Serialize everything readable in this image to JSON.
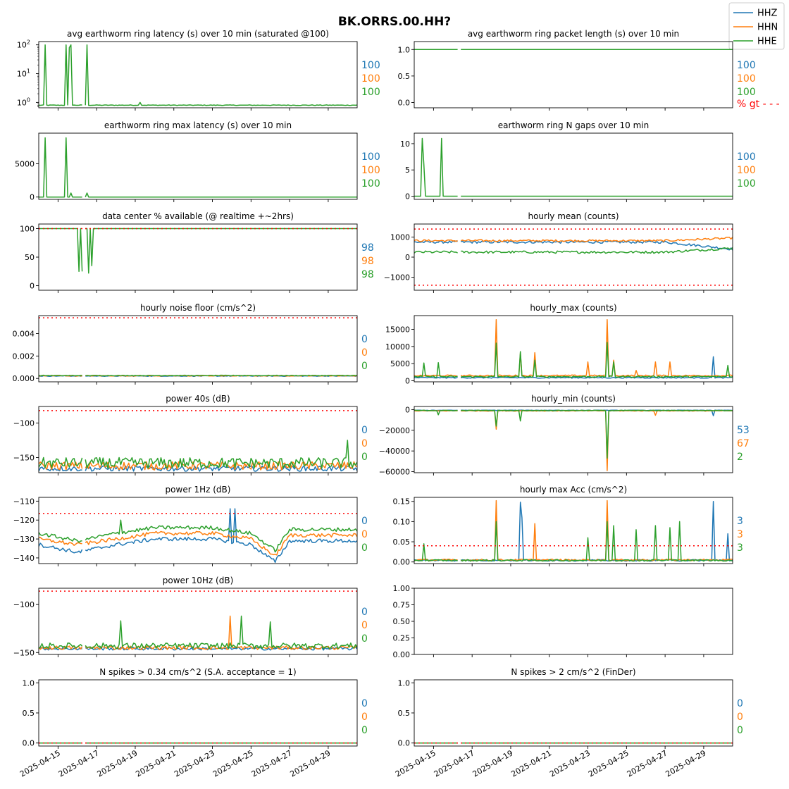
{
  "figure": {
    "title": "BK.ORRS.00.HH?",
    "colors": {
      "HHZ": "#1f77b4",
      "HHN": "#ff7f0e",
      "HHE": "#2ca02c",
      "threshold": "#ff0000"
    },
    "legend": {
      "placement": "top-right",
      "entries": [
        "HHZ",
        "HHN",
        "HHE"
      ]
    },
    "x_axis": {
      "range": [
        "2025-04-14",
        "2025-04-30T12:00"
      ],
      "tick_labels": [
        "2025-04-15",
        "2025-04-17",
        "2025-04-19",
        "2025-04-21",
        "2025-04-23",
        "2025-04-25",
        "2025-04-27",
        "2025-04-29"
      ],
      "data_gap": [
        "2025-04-16T06:00",
        "2025-04-16T10:00"
      ]
    }
  },
  "chart_data": [
    {
      "id": "p1",
      "type": "line",
      "title": "avg earthworm ring latency (s)   over 10 min (saturated @100)",
      "yscale": "log",
      "ylim": [
        0.65,
        130
      ],
      "y_tick_labels": [
        "10^0",
        "10^1",
        "10^2"
      ],
      "y_ticks": [
        1,
        10,
        100
      ],
      "threshold": null,
      "percent_labels": [
        "100",
        "100",
        "100"
      ],
      "series": [
        {
          "name": "HHE",
          "baseline": 0.8,
          "noise": 0.02,
          "spikes": [
            [
              "2025-04-14T09:00",
              100
            ],
            [
              "2025-04-15T10:00",
              100
            ],
            [
              "2025-04-15T14:00",
              80
            ],
            [
              "2025-04-15T16:00",
              100
            ],
            [
              "2025-04-16T12:00",
              100
            ],
            [
              "2025-04-19T06:00",
              1.0
            ]
          ]
        }
      ]
    },
    {
      "id": "p2",
      "type": "line",
      "title": "avg earthworm ring packet length (s)   over 10 min",
      "yscale": "linear",
      "ylim": [
        -0.1,
        1.15
      ],
      "y_ticks": [
        0,
        0.5,
        1
      ],
      "y_tick_labels": [
        "0.0",
        "0.5",
        "1.0"
      ],
      "threshold": null,
      "percent_labels": [
        "100",
        "100",
        "100"
      ],
      "note": "% gt - - -",
      "series": [
        {
          "name": "HHE",
          "baseline": 1.0,
          "noise": 0,
          "spikes": []
        }
      ]
    },
    {
      "id": "p3",
      "type": "line",
      "title": "earthworm ring max latency (s)   over 10 min",
      "yscale": "linear",
      "ylim": [
        -350,
        9600
      ],
      "y_ticks": [
        0,
        5000
      ],
      "y_tick_labels": [
        "0",
        "5000"
      ],
      "threshold": null,
      "percent_labels": [
        "100",
        "100",
        "100"
      ],
      "series": [
        {
          "name": "HHE",
          "baseline": 0,
          "noise": 0,
          "spikes": [
            [
              "2025-04-14T09:00",
              8900
            ],
            [
              "2025-04-15T10:00",
              8900
            ],
            [
              "2025-04-15T16:00",
              600
            ],
            [
              "2025-04-16T12:00",
              600
            ]
          ]
        }
      ]
    },
    {
      "id": "p4",
      "type": "line",
      "title": "earthworm ring N gaps   over 10 min",
      "yscale": "linear",
      "ylim": [
        -0.6,
        12
      ],
      "y_ticks": [
        0,
        5,
        10
      ],
      "y_tick_labels": [
        "0",
        "5",
        "10"
      ],
      "threshold": null,
      "percent_labels": [
        "100",
        "100",
        "100"
      ],
      "series": [
        {
          "name": "HHE",
          "baseline": 0,
          "noise": 0,
          "spikes": [
            [
              "2025-04-14T10:00",
              11
            ],
            [
              "2025-04-14T12:00",
              6
            ],
            [
              "2025-04-15T10:00",
              11
            ]
          ]
        }
      ]
    },
    {
      "id": "p5",
      "type": "line",
      "title": "data center % available (@ realtime +~2hrs)",
      "yscale": "linear",
      "ylim": [
        -8,
        108
      ],
      "y_ticks": [
        0,
        50,
        100
      ],
      "y_tick_labels": [
        "0",
        "50",
        "100"
      ],
      "threshold": 100,
      "percent_labels": [
        "98",
        "98",
        "98"
      ],
      "series": [
        {
          "name": "HHE",
          "baseline": 100,
          "noise": 0,
          "spikes": [
            [
              "2025-04-16T03:00",
              25
            ],
            [
              "2025-04-16T06:00",
              25
            ],
            [
              "2025-04-16T14:00",
              22
            ],
            [
              "2025-04-16T18:00",
              35
            ]
          ]
        }
      ]
    },
    {
      "id": "p6",
      "type": "line",
      "title": "hourly mean (counts)",
      "yscale": "linear",
      "ylim": [
        -1650,
        1650
      ],
      "y_ticks": [
        -1000,
        0,
        1000
      ],
      "y_tick_labels": [
        "−1000",
        "0",
        "1000"
      ],
      "threshold": [
        1400,
        -1400
      ],
      "percent_labels": [],
      "series": [
        {
          "name": "HHZ",
          "baseline": 750,
          "noise": 60,
          "end_value": 400,
          "spikes": []
        },
        {
          "name": "HHN",
          "baseline": 820,
          "noise": 50,
          "end_value": 950,
          "spikes": []
        },
        {
          "name": "HHE",
          "baseline": 250,
          "noise": 60,
          "end_value": 450,
          "spikes": []
        }
      ]
    },
    {
      "id": "p7",
      "type": "line",
      "title": "hourly noise floor (cm/s^2)",
      "yscale": "linear",
      "ylim": [
        -0.0003,
        0.0056
      ],
      "y_ticks": [
        0,
        0.002,
        0.004
      ],
      "y_tick_labels": [
        "0.000",
        "0.002",
        "0.004"
      ],
      "threshold": 0.0054,
      "percent_labels": [
        "0",
        "0",
        "0"
      ],
      "series": [
        {
          "name": "HHZ",
          "baseline": 0.00022,
          "noise": 3e-05,
          "spikes": []
        },
        {
          "name": "HHN",
          "baseline": 0.00024,
          "noise": 3e-05,
          "spikes": []
        },
        {
          "name": "HHE",
          "baseline": 0.00026,
          "noise": 3e-05,
          "spikes": []
        }
      ]
    },
    {
      "id": "p8",
      "type": "line",
      "title": "hourly_max (counts)",
      "yscale": "linear",
      "ylim": [
        -300,
        19000
      ],
      "y_ticks": [
        0,
        5000,
        10000,
        15000
      ],
      "y_tick_labels": [
        "0",
        "5000",
        "10000",
        "15000"
      ],
      "threshold": null,
      "percent_labels": [],
      "series": [
        {
          "name": "HHZ",
          "baseline": 900,
          "noise": 150,
          "spikes": [
            [
              "2025-04-29T12:00",
              7000
            ]
          ]
        },
        {
          "name": "HHN",
          "baseline": 1500,
          "noise": 200,
          "spikes": [
            [
              "2025-04-18T07:00",
              17800
            ],
            [
              "2025-04-19T12:00",
              8000
            ],
            [
              "2025-04-20T06:00",
              8200
            ],
            [
              "2025-04-23T00:00",
              5500
            ],
            [
              "2025-04-24T00:00",
              17800
            ],
            [
              "2025-04-24T09:00",
              6000
            ],
            [
              "2025-04-25T12:00",
              3000
            ],
            [
              "2025-04-26T12:00",
              5500
            ],
            [
              "2025-04-27T06:00",
              5500
            ]
          ]
        },
        {
          "name": "HHE",
          "baseline": 1200,
          "noise": 200,
          "spikes": [
            [
              "2025-04-14T12:00",
              5200
            ],
            [
              "2025-04-15T06:00",
              5300
            ],
            [
              "2025-04-18T07:00",
              11000
            ],
            [
              "2025-04-19T12:00",
              8500
            ],
            [
              "2025-04-20T06:00",
              6000
            ],
            [
              "2025-04-24T00:00",
              11200
            ],
            [
              "2025-04-24T09:00",
              5500
            ],
            [
              "2025-04-30T06:00",
              4500
            ]
          ]
        }
      ]
    },
    {
      "id": "p9",
      "type": "line",
      "title": "power 40s (dB)",
      "yscale": "linear",
      "ylim": [
        -172,
        -76
      ],
      "y_ticks": [
        -150,
        -100
      ],
      "y_tick_labels": [
        "−150",
        "−100"
      ],
      "threshold": -82,
      "percent_labels": [
        "0",
        "0",
        "0"
      ],
      "series": [
        {
          "name": "HHZ",
          "baseline": -166,
          "noise": 4,
          "spikes": []
        },
        {
          "name": "HHN",
          "baseline": -162,
          "noise": 6,
          "spikes": []
        },
        {
          "name": "HHE",
          "baseline": -158,
          "noise": 8,
          "spikes": [
            [
              "2025-04-30T00:00",
              -125
            ]
          ]
        }
      ]
    },
    {
      "id": "p10",
      "type": "line",
      "title": "hourly_min (counts)",
      "yscale": "linear",
      "ylim": [
        -61000,
        3000
      ],
      "y_ticks": [
        -60000,
        -40000,
        -20000,
        0
      ],
      "y_tick_labels": [
        "−60000",
        "−40000",
        "−20000",
        "0"
      ],
      "threshold": null,
      "percent_labels": [
        "53",
        "67",
        "2"
      ],
      "series": [
        {
          "name": "HHZ",
          "baseline": -700,
          "noise": 200,
          "spikes": [
            [
              "2025-04-29T12:00",
              -6000
            ]
          ]
        },
        {
          "name": "HHN",
          "baseline": -1200,
          "noise": 300,
          "spikes": [
            [
              "2025-04-18T07:00",
              -19000
            ],
            [
              "2025-04-24T00:00",
              -59000
            ],
            [
              "2025-04-26T12:00",
              -5500
            ]
          ]
        },
        {
          "name": "HHE",
          "baseline": -900,
          "noise": 300,
          "spikes": [
            [
              "2025-04-18T07:00",
              -16000
            ],
            [
              "2025-04-19T12:00",
              -11000
            ],
            [
              "2025-04-24T00:00",
              -47000
            ],
            [
              "2025-04-15T06:00",
              -5000
            ]
          ]
        }
      ]
    },
    {
      "id": "p11",
      "type": "line",
      "title": "power 1Hz (dB)",
      "yscale": "linear",
      "ylim": [
        -143,
        -108
      ],
      "y_ticks": [
        -140,
        -130,
        -120,
        -110
      ],
      "y_tick_labels": [
        "−140",
        "−130",
        "−120",
        "−110"
      ],
      "threshold": -116.5,
      "percent_labels": [
        "0",
        "0",
        "0"
      ],
      "series": [
        {
          "name": "HHZ",
          "baseline": -131,
          "noise": 1,
          "spikes": [
            [
              "2025-04-23T22:00",
              -114
            ],
            [
              "2025-04-24T04:00",
              -114
            ]
          ],
          "profile": [
            [
              "2025-04-14",
              -133
            ],
            [
              "2025-04-16",
              -137
            ],
            [
              "2025-04-18",
              -133
            ],
            [
              "2025-04-20",
              -130
            ],
            [
              "2025-04-23",
              -130
            ],
            [
              "2025-04-25",
              -133
            ],
            [
              "2025-04-26T06:00",
              -142
            ],
            [
              "2025-04-27",
              -131
            ],
            [
              "2025-04-30T12:00",
              -131
            ]
          ]
        },
        {
          "name": "HHN",
          "baseline": -128,
          "noise": 1,
          "spikes": [],
          "profile": [
            [
              "2025-04-14",
              -130
            ],
            [
              "2025-04-16",
              -133
            ],
            [
              "2025-04-18",
              -130
            ],
            [
              "2025-04-20",
              -127
            ],
            [
              "2025-04-23",
              -127
            ],
            [
              "2025-04-25",
              -130
            ],
            [
              "2025-04-26T06:00",
              -139
            ],
            [
              "2025-04-27",
              -128
            ],
            [
              "2025-04-30T12:00",
              -128
            ]
          ]
        },
        {
          "name": "HHE",
          "baseline": -125,
          "noise": 1,
          "spikes": [
            [
              "2025-04-18T07:00",
              -120
            ]
          ],
          "profile": [
            [
              "2025-04-14",
              -127
            ],
            [
              "2025-04-16",
              -131
            ],
            [
              "2025-04-18",
              -127
            ],
            [
              "2025-04-20",
              -124
            ],
            [
              "2025-04-23",
              -124
            ],
            [
              "2025-04-25",
              -127
            ],
            [
              "2025-04-26T06:00",
              -136
            ],
            [
              "2025-04-27",
              -125
            ],
            [
              "2025-04-30T12:00",
              -125
            ]
          ]
        }
      ]
    },
    {
      "id": "p12",
      "type": "line",
      "title": "hourly max Acc (cm/s^2)",
      "yscale": "linear",
      "ylim": [
        -0.004,
        0.16
      ],
      "y_ticks": [
        0,
        0.05,
        0.1,
        0.15
      ],
      "y_tick_labels": [
        "0.00",
        "0.05",
        "0.10",
        "0.15"
      ],
      "threshold": 0.04,
      "percent_labels": [
        "3",
        "3",
        "3"
      ],
      "series": [
        {
          "name": "HHZ",
          "baseline": 0.004,
          "noise": 0.002,
          "spikes": [
            [
              "2025-04-19T12:00",
              0.148
            ],
            [
              "2025-04-19T15:00",
              0.11
            ],
            [
              "2025-04-29T12:00",
              0.15
            ],
            [
              "2025-04-30T06:00",
              0.07
            ]
          ]
        },
        {
          "name": "HHN",
          "baseline": 0.005,
          "noise": 0.002,
          "spikes": [
            [
              "2025-04-18T07:00",
              0.152
            ],
            [
              "2025-04-24T00:00",
              0.152
            ],
            [
              "2025-04-20T06:00",
              0.095
            ]
          ]
        },
        {
          "name": "HHE",
          "baseline": 0.004,
          "noise": 0.002,
          "spikes": [
            [
              "2025-04-14T12:00",
              0.045
            ],
            [
              "2025-04-18T07:00",
              0.1
            ],
            [
              "2025-04-23T00:00",
              0.06
            ],
            [
              "2025-04-24T00:00",
              0.1
            ],
            [
              "2025-04-24T09:00",
              0.09
            ],
            [
              "2025-04-25T12:00",
              0.08
            ],
            [
              "2025-04-26T12:00",
              0.09
            ],
            [
              "2025-04-27T06:00",
              0.085
            ],
            [
              "2025-04-27T18:00",
              0.1
            ]
          ]
        }
      ]
    },
    {
      "id": "p13",
      "type": "line",
      "title": "power 10Hz (dB)",
      "yscale": "linear",
      "ylim": [
        -152,
        -83
      ],
      "y_ticks": [
        -150,
        -100
      ],
      "y_tick_labels": [
        "−150",
        "−100"
      ],
      "threshold": -86,
      "percent_labels": [
        "0",
        "0",
        "0"
      ],
      "series": [
        {
          "name": "HHZ",
          "baseline": -146,
          "noise": 1.5,
          "spikes": []
        },
        {
          "name": "HHN",
          "baseline": -145,
          "noise": 2,
          "spikes": [
            [
              "2025-04-23T22:00",
              -112
            ]
          ]
        },
        {
          "name": "HHE",
          "baseline": -143,
          "noise": 3,
          "spikes": [
            [
              "2025-04-18T06:00",
              -117
            ],
            [
              "2025-04-24T12:00",
              -112
            ],
            [
              "2025-04-26T00:00",
              -118
            ]
          ]
        }
      ]
    },
    {
      "id": "p14",
      "type": "empty",
      "title": "",
      "yscale": "linear",
      "ylim": [
        0,
        1
      ],
      "y_ticks": [
        0,
        0.25,
        0.5,
        0.75,
        1
      ],
      "y_tick_labels": [
        "0.00",
        "0.25",
        "0.50",
        "0.75",
        "1.00"
      ],
      "threshold": null,
      "percent_labels": [],
      "series": []
    },
    {
      "id": "p15",
      "type": "line",
      "title": "N spikes > 0.34 cm/s^2 (S.A. acceptance = 1)",
      "yscale": "linear",
      "ylim": [
        -0.05,
        1.05
      ],
      "y_ticks": [
        0,
        0.5,
        1
      ],
      "y_tick_labels": [
        "0.0",
        "0.5",
        "1.0"
      ],
      "threshold": 0,
      "percent_labels": [
        "0",
        "0",
        "0"
      ],
      "series": [
        {
          "name": "HHE",
          "baseline": 0,
          "noise": 0,
          "spikes": []
        }
      ]
    },
    {
      "id": "p16",
      "type": "line",
      "title": "N spikes > 2 cm/s^2 (FinDer)",
      "yscale": "linear",
      "ylim": [
        -0.05,
        1.05
      ],
      "y_ticks": [
        0,
        0.5,
        1
      ],
      "y_tick_labels": [
        "0.0",
        "0.5",
        "1.0"
      ],
      "threshold": 0,
      "percent_labels": [
        "0",
        "0",
        "0"
      ],
      "series": [
        {
          "name": "HHE",
          "baseline": 0,
          "noise": 0,
          "spikes": []
        }
      ]
    }
  ]
}
